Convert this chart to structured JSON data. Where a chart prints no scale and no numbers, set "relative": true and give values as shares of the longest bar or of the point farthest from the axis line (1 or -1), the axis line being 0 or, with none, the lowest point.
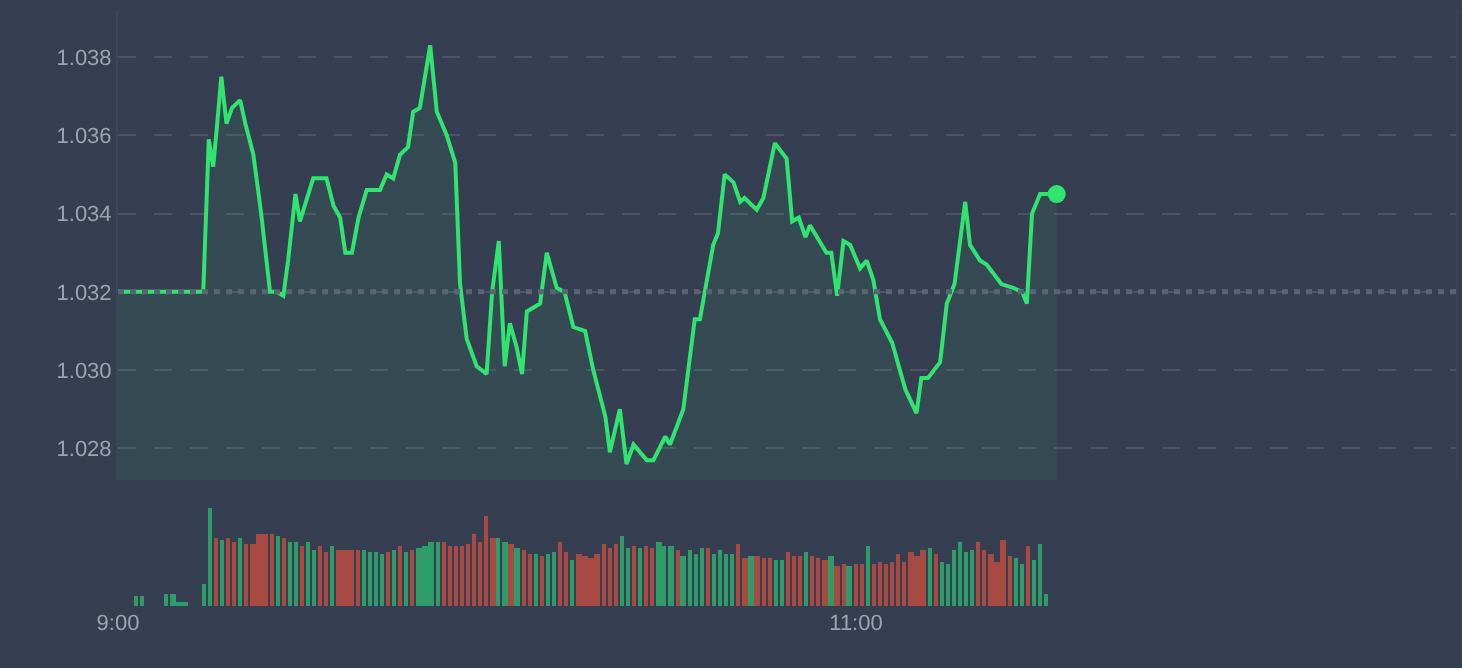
{
  "chart_data": [
    {
      "type": "area",
      "xlim": [
        9,
        12.626
      ],
      "ylim": [
        1.0272,
        1.0392
      ],
      "yticks": [
        1.028,
        {
          "value": 1.03,
          "label": "1.030"
        },
        1.032,
        1.034,
        1.036,
        1.038
      ],
      "grid": "y",
      "tick_labels": "y",
      "line_style": "solid",
      "ref_lines": [
        {
          "axis": "y",
          "value": 1.032,
          "line_style": "dotted",
          "color": "#5b6475"
        }
      ],
      "series": [
        {
          "color": "#2fe46f",
          "x": [
            9.0,
            9.231,
            9.246,
            9.258,
            9.267,
            9.28,
            9.294,
            9.309,
            9.331,
            9.345,
            9.367,
            9.388,
            9.412,
            9.43,
            9.448,
            9.461,
            9.481,
            9.493,
            9.529,
            9.565,
            9.584,
            9.602,
            9.616,
            9.634,
            9.652,
            9.674,
            9.71,
            9.728,
            9.746,
            9.764,
            9.786,
            9.8,
            9.818,
            9.846,
            9.864,
            9.891,
            9.914,
            9.927,
            9.945,
            9.972,
            9.999,
            10.014,
            10.032,
            10.048,
            10.062,
            10.08,
            10.095,
            10.108,
            10.144,
            10.162,
            10.189,
            10.21,
            10.234,
            10.266,
            10.288,
            10.321,
            10.333,
            10.36,
            10.378,
            10.397,
            10.433,
            10.451,
            10.483,
            10.496,
            10.532,
            10.563,
            10.577,
            10.613,
            10.626,
            10.644,
            10.668,
            10.686,
            10.698,
            10.731,
            10.749,
            10.78,
            10.812,
            10.827,
            10.845,
            10.863,
            10.875,
            10.92,
            10.933,
            10.949,
            10.966,
            10.984,
            11.011,
            11.029,
            11.047,
            11.065,
            11.098,
            11.134,
            11.164,
            11.177,
            11.195,
            11.228,
            11.246,
            11.267,
            11.296,
            11.309,
            11.336,
            11.354,
            11.394,
            11.426,
            11.45,
            11.463,
            11.477,
            11.499,
            11.544
          ],
          "values": [
            1.032,
            1.032,
            1.0359,
            1.0352,
            1.0361,
            1.0375,
            1.0363,
            1.0367,
            1.0369,
            1.0363,
            1.0355,
            1.034,
            1.032,
            1.032,
            1.0319,
            1.0328,
            1.0345,
            1.0338,
            1.0349,
            1.0349,
            1.0342,
            1.0339,
            1.033,
            1.033,
            1.0339,
            1.0346,
            1.0346,
            1.035,
            1.0349,
            1.0355,
            1.0357,
            1.0366,
            1.0367,
            1.0383,
            1.0366,
            1.036,
            1.0353,
            1.0322,
            1.0308,
            1.0301,
            1.0299,
            1.032,
            1.0333,
            1.0301,
            1.0312,
            1.0306,
            1.0299,
            1.0315,
            1.0317,
            1.033,
            1.0321,
            1.032,
            1.0311,
            1.031,
            1.03,
            1.0288,
            1.0279,
            1.029,
            1.0276,
            1.0281,
            1.0277,
            1.0277,
            1.0283,
            1.0281,
            1.029,
            1.0313,
            1.0313,
            1.0332,
            1.0335,
            1.035,
            1.0348,
            1.0343,
            1.0344,
            1.0341,
            1.0344,
            1.0358,
            1.0354,
            1.0338,
            1.0339,
            1.0334,
            1.0337,
            1.033,
            1.033,
            1.0319,
            1.0333,
            1.0332,
            1.0326,
            1.0328,
            1.0323,
            1.0313,
            1.0307,
            1.0295,
            1.0289,
            1.0298,
            1.0298,
            1.0302,
            1.0317,
            1.0322,
            1.0343,
            1.0332,
            1.0328,
            1.0327,
            1.0322,
            1.0321,
            1.032,
            1.0317,
            1.034,
            1.0345,
            1.0345
          ]
        }
      ]
    },
    {
      "type": "bar",
      "relative": true,
      "xlim": [
        9,
        12.626
      ],
      "xticks": [
        {
          "value": 9,
          "label": "9:00"
        },
        {
          "value": 11,
          "label": "11:00"
        }
      ],
      "tick_labels": "x",
      "grid": false,
      "x": [
        9.05,
        9.067,
        9.133,
        9.15,
        9.167,
        9.183,
        9.233,
        9.25,
        9.267,
        9.283,
        9.3,
        9.317,
        9.333,
        9.35,
        9.367,
        9.383,
        9.4,
        9.417,
        9.433,
        9.45,
        9.467,
        9.483,
        9.5,
        9.517,
        9.533,
        9.55,
        9.567,
        9.583,
        9.6,
        9.617,
        9.633,
        9.65,
        9.667,
        9.683,
        9.7,
        9.717,
        9.733,
        9.75,
        9.767,
        9.783,
        9.8,
        9.817,
        9.833,
        9.85,
        9.867,
        9.883,
        9.9,
        9.917,
        9.933,
        9.95,
        9.967,
        9.983,
        10.0,
        10.017,
        10.033,
        10.05,
        10.067,
        10.083,
        10.1,
        10.117,
        10.133,
        10.15,
        10.167,
        10.183,
        10.2,
        10.217,
        10.233,
        10.25,
        10.267,
        10.283,
        10.3,
        10.317,
        10.333,
        10.35,
        10.367,
        10.383,
        10.4,
        10.417,
        10.433,
        10.45,
        10.467,
        10.483,
        10.5,
        10.517,
        10.533,
        10.55,
        10.567,
        10.583,
        10.6,
        10.617,
        10.633,
        10.65,
        10.667,
        10.683,
        10.7,
        10.717,
        10.733,
        10.75,
        10.767,
        10.783,
        10.8,
        10.817,
        10.833,
        10.85,
        10.867,
        10.883,
        10.9,
        10.917,
        10.933,
        10.95,
        10.967,
        10.983,
        11.0,
        11.017,
        11.033,
        11.05,
        11.067,
        11.083,
        11.1,
        11.117,
        11.133,
        11.15,
        11.167,
        11.183,
        11.2,
        11.217,
        11.233,
        11.25,
        11.267,
        11.283,
        11.3,
        11.317,
        11.333,
        11.35,
        11.367,
        11.383,
        11.4,
        11.417,
        11.433,
        11.45,
        11.467,
        11.483,
        11.5,
        11.517
      ],
      "values": [
        0.11,
        0.11,
        0.13,
        0.13,
        0.05,
        0.05,
        0.22,
        1.0,
        0.7,
        0.68,
        0.7,
        0.66,
        0.7,
        0.64,
        0.64,
        0.74,
        0.74,
        0.74,
        0.72,
        0.7,
        0.66,
        0.66,
        0.61,
        0.66,
        0.57,
        0.61,
        0.55,
        0.61,
        0.57,
        0.57,
        0.57,
        0.57,
        0.57,
        0.55,
        0.55,
        0.53,
        0.55,
        0.57,
        0.61,
        0.55,
        0.57,
        0.59,
        0.61,
        0.66,
        0.66,
        0.66,
        0.61,
        0.61,
        0.61,
        0.64,
        0.74,
        0.66,
        0.92,
        0.7,
        0.7,
        0.66,
        0.64,
        0.59,
        0.57,
        0.53,
        0.53,
        0.51,
        0.53,
        0.55,
        0.66,
        0.55,
        0.47,
        0.53,
        0.51,
        0.49,
        0.53,
        0.64,
        0.59,
        0.64,
        0.72,
        0.59,
        0.61,
        0.59,
        0.61,
        0.59,
        0.66,
        0.61,
        0.61,
        0.57,
        0.51,
        0.57,
        0.53,
        0.59,
        0.59,
        0.53,
        0.57,
        0.53,
        0.53,
        0.64,
        0.49,
        0.51,
        0.51,
        0.49,
        0.49,
        0.47,
        0.47,
        0.55,
        0.51,
        0.51,
        0.55,
        0.51,
        0.49,
        0.47,
        0.51,
        0.41,
        0.43,
        0.41,
        0.43,
        0.43,
        0.61,
        0.43,
        0.45,
        0.43,
        0.45,
        0.53,
        0.45,
        0.55,
        0.51,
        0.57,
        0.59,
        0.53,
        0.45,
        0.43,
        0.57,
        0.66,
        0.55,
        0.57,
        0.66,
        0.57,
        0.53,
        0.45,
        0.68,
        0.51,
        0.49,
        0.43,
        0.61,
        0.47,
        0.64,
        0.13
      ],
      "colors": [
        "#2e9c68",
        "#2e9c68",
        "#2e9c68",
        "#2e9c68",
        "#2e9c68",
        "#2e9c68",
        "#2e9c68",
        "#2e9c68",
        "#a84a42",
        "#2e9c68",
        "#a84a42",
        "#a84a42",
        "#2e9c68",
        "#a84a42",
        "#a84a42",
        "#a84a42",
        "#a84a42",
        "#a84a42",
        "#2e9c68",
        "#a84a42",
        "#2e9c68",
        "#2e9c68",
        "#a84a42",
        "#2e9c68",
        "#2e9c68",
        "#a84a42",
        "#a84a42",
        "#2e9c68",
        "#a84a42",
        "#a84a42",
        "#a84a42",
        "#a84a42",
        "#2e9c68",
        "#2e9c68",
        "#2e9c68",
        "#2e9c68",
        "#a84a42",
        "#2e9c68",
        "#a84a42",
        "#2e9c68",
        "#a84a42",
        "#2e9c68",
        "#2e9c68",
        "#2e9c68",
        "#2e9c68",
        "#a84a42",
        "#a84a42",
        "#a84a42",
        "#a84a42",
        "#a84a42",
        "#a84a42",
        "#a84a42",
        "#a84a42",
        "#a84a42",
        "#2e9c68",
        "#2e9c68",
        "#a84a42",
        "#2e9c68",
        "#a84a42",
        "#a84a42",
        "#2e9c68",
        "#a84a42",
        "#2e9c68",
        "#2e9c68",
        "#a84a42",
        "#a84a42",
        "#2e9c68",
        "#a84a42",
        "#a84a42",
        "#a84a42",
        "#a84a42",
        "#a84a42",
        "#a84a42",
        "#a84a42",
        "#2e9c68",
        "#2e9c68",
        "#a84a42",
        "#2e9c68",
        "#a84a42",
        "#a84a42",
        "#2e9c68",
        "#2e9c68",
        "#2e9c68",
        "#a84a42",
        "#2e9c68",
        "#2e9c68",
        "#2e9c68",
        "#2e9c68",
        "#a84a42",
        "#2e9c68",
        "#2e9c68",
        "#2e9c68",
        "#2e9c68",
        "#a84a42",
        "#a84a42",
        "#2e9c68",
        "#a84a42",
        "#a84a42",
        "#a84a42",
        "#2e9c68",
        "#2e9c68",
        "#a84a42",
        "#a84a42",
        "#a84a42",
        "#2e9c68",
        "#a84a42",
        "#a84a42",
        "#a84a42",
        "#2e9c68",
        "#a84a42",
        "#a84a42",
        "#2e9c68",
        "#a84a42",
        "#a84a42",
        "#2e9c68",
        "#a84a42",
        "#a84a42",
        "#a84a42",
        "#a84a42",
        "#a84a42",
        "#a84a42",
        "#a84a42",
        "#a84a42",
        "#a84a42",
        "#2e9c68",
        "#a84a42",
        "#2e9c68",
        "#2e9c68",
        "#2e9c68",
        "#2e9c68",
        "#2e9c68",
        "#2e9c68",
        "#a84a42",
        "#a84a42",
        "#a84a42",
        "#a84a42",
        "#a84a42",
        "#a84a42",
        "#2e9c68",
        "#2e9c68",
        "#a84a42",
        "#2e9c68",
        "#2e9c68",
        "#2e9c68"
      ]
    }
  ]
}
